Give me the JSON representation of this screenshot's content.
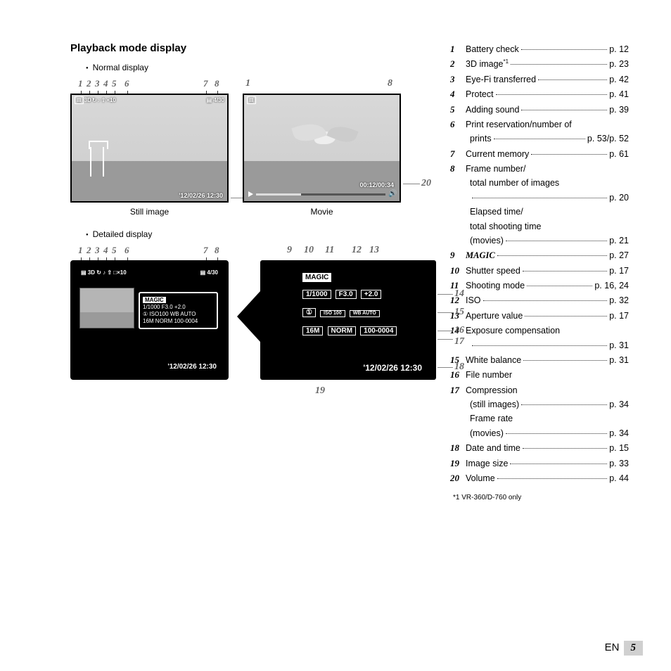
{
  "title": "Playback mode display",
  "normal_display_label": "Normal display",
  "detailed_display_label": "Detailed display",
  "still_caption": "Still image",
  "movie_caption": "Movie",
  "num_labels": {
    "row_a": [
      "1",
      "2",
      "3",
      "4",
      "5",
      "6",
      "7",
      "8"
    ],
    "movie_top": [
      "1",
      "8"
    ],
    "detail_top": [
      "1",
      "2",
      "3",
      "4",
      "5",
      "6",
      "7",
      "8"
    ],
    "big_top": [
      "9",
      "10",
      "11",
      "12",
      "13"
    ]
  },
  "callouts": {
    "n18": "18",
    "n20": "20",
    "n14": "14",
    "n15": "15",
    "n16": "16",
    "n17": "17",
    "n18b": "18",
    "n19": "19"
  },
  "images": {
    "still": {
      "top_icons": [
        "▤",
        "3D",
        "↻",
        "♪",
        "⇧",
        "×10"
      ],
      "top_right": "▤ 4/30",
      "timestamp": "'12/02/26 12:30"
    },
    "movie": {
      "top_left": "▤",
      "elapsed": "00:12/00:34"
    },
    "detail": {
      "top_icons": "▤ 3D ↻ ♪ ⇧ □×10",
      "top_right": "▤ 4/30",
      "magic": "MAGIC",
      "line1": "1/1000  F3.0   +2.0",
      "line2": "①  ISO100  WB AUTO",
      "line3": "16M  NORM  100-0004",
      "timestamp": "'12/02/26  12:30"
    },
    "bigdetail": {
      "magic": "MAGIC",
      "shutter": "1/1000",
      "fnum": "F3.0",
      "ev": "+2.0",
      "drive": "①",
      "iso": "ISO\n100",
      "wb": "WB\nAUTO",
      "size": "16M",
      "comp": "NORM",
      "file": "100-0004",
      "date": "'12/02/26  12:30"
    }
  },
  "legend": [
    {
      "n": "1",
      "label": "Battery check",
      "page": "p. 12"
    },
    {
      "n": "2",
      "label": "3D image",
      "sup": "*1",
      "page": "p. 23"
    },
    {
      "n": "3",
      "label": "Eye-Fi transferred",
      "page": "p. 42"
    },
    {
      "n": "4",
      "label": "Protect",
      "page": "p. 41"
    },
    {
      "n": "5",
      "label": "Adding sound",
      "page": "p. 39"
    },
    {
      "n": "6",
      "label": "Print reservation/number of",
      "page": ""
    },
    {
      "n": "",
      "label": "prints",
      "page": "p. 53/p. 52",
      "sub": true
    },
    {
      "n": "7",
      "label": "Current memory",
      "page": "p. 61"
    },
    {
      "n": "8",
      "label": "Frame number/",
      "page": ""
    },
    {
      "n": "",
      "label": "total number of images",
      "page": "",
      "sub": true
    },
    {
      "n": "",
      "label": "",
      "page": "p. 20",
      "sub": true
    },
    {
      "n": "",
      "label": "Elapsed time/",
      "page": "",
      "sub": true
    },
    {
      "n": "",
      "label": "total shooting time",
      "page": "",
      "sub": true
    },
    {
      "n": "",
      "label": "(movies)",
      "page": "p. 21",
      "sub": true
    },
    {
      "n": "9",
      "label": "MAGIC",
      "bold": true,
      "page": "p. 27"
    },
    {
      "n": "10",
      "label": "Shutter speed",
      "page": "p. 17"
    },
    {
      "n": "11",
      "label": "Shooting mode",
      "page": "p. 16, 24"
    },
    {
      "n": "12",
      "label": "ISO",
      "page": "p. 32"
    },
    {
      "n": "13",
      "label": "Aperture value",
      "page": "p. 17"
    },
    {
      "n": "14",
      "label": "Exposure compensation",
      "page": ""
    },
    {
      "n": "",
      "label": "",
      "page": "p. 31",
      "sub": true
    },
    {
      "n": "15",
      "label": "White balance",
      "page": "p. 31"
    },
    {
      "n": "16",
      "label": "File number",
      "page": ""
    },
    {
      "n": "17",
      "label": "Compression",
      "page": ""
    },
    {
      "n": "",
      "label": "(still images)",
      "page": "p. 34",
      "sub": true
    },
    {
      "n": "",
      "label": "Frame rate",
      "page": "",
      "sub": true
    },
    {
      "n": "",
      "label": "(movies)",
      "page": "p. 34",
      "sub": true
    },
    {
      "n": "18",
      "label": "Date and time",
      "page": "p. 15"
    },
    {
      "n": "19",
      "label": "Image size",
      "page": "p. 33"
    },
    {
      "n": "20",
      "label": "Volume",
      "page": "p. 44"
    }
  ],
  "footnote": "*1  VR-360/D-760 only",
  "pagefooter": {
    "lang": "EN",
    "num": "5"
  }
}
